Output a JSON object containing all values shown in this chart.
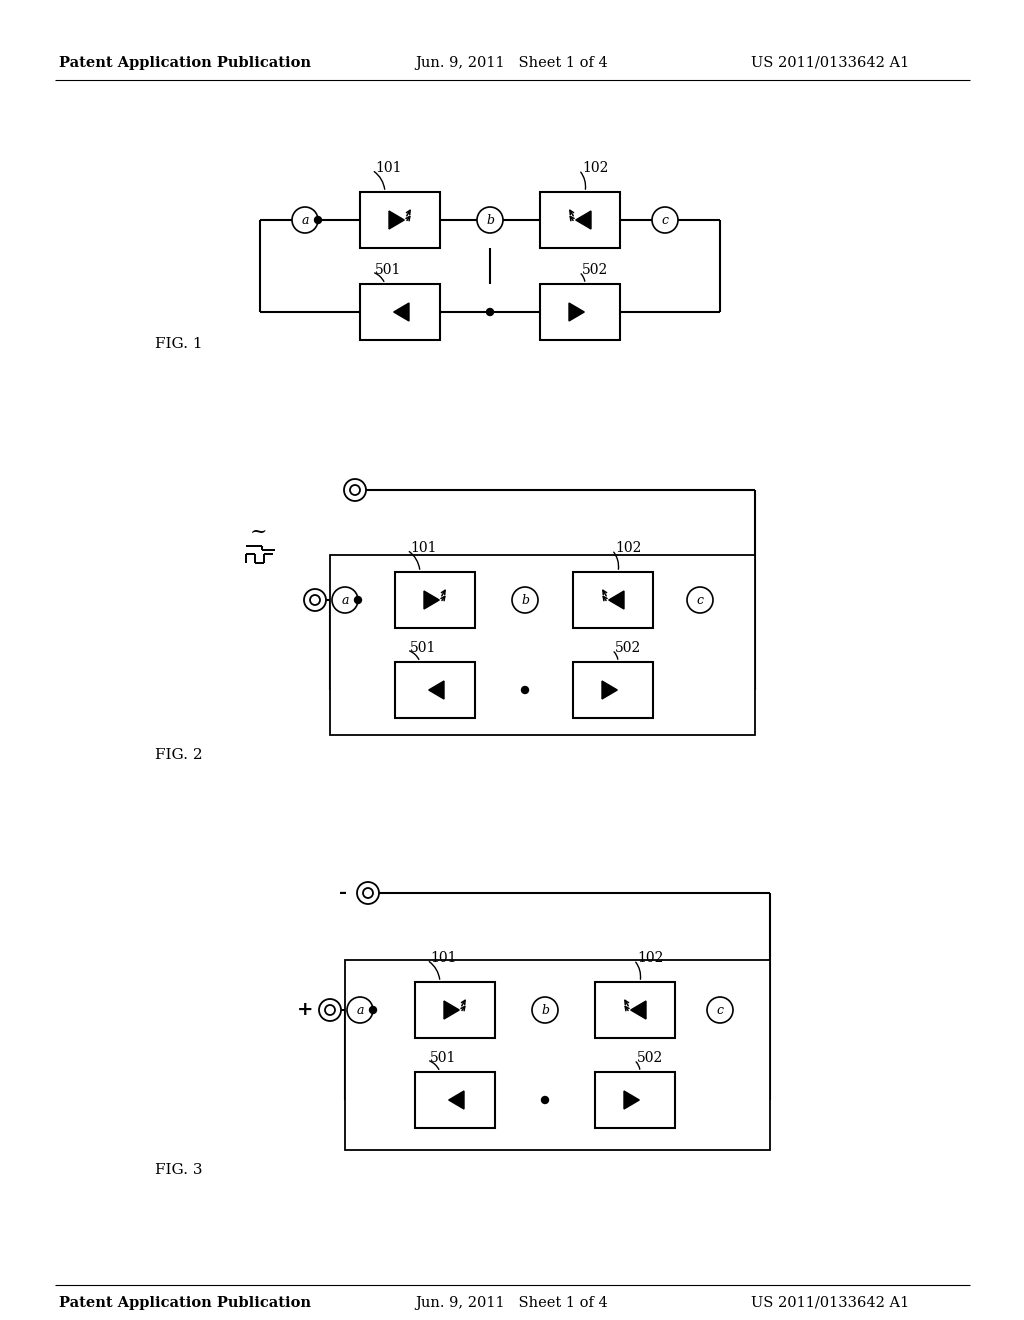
{
  "title_left": "Patent Application Publication",
  "title_center": "Jun. 9, 2011   Sheet 1 of 4",
  "title_right": "US 2011/0133642 A1",
  "background_color": "#ffffff",
  "fig1_label": "FIG. 1",
  "fig2_label": "FIG. 2",
  "fig3_label": "FIG. 3"
}
